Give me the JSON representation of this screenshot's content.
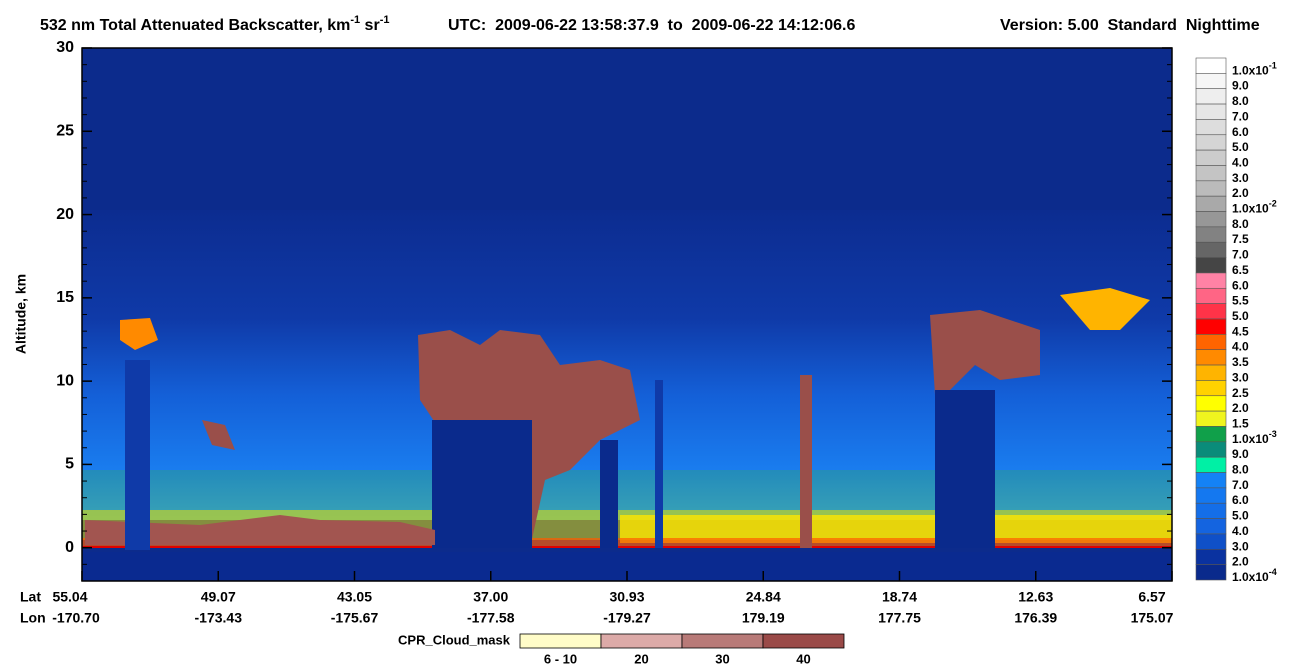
{
  "chart_data": {
    "type": "curtain",
    "title": {
      "main": "532 nm Total Attenuated Backscatter, km",
      "sup1": "-1",
      "unit2": " sr",
      "sup2": "-1",
      "utc": "UTC:  2009-06-22 13:58:37.9  to  2009-06-22 14:12:06.6",
      "version": "Version: 5.00  Standard  Nighttime"
    },
    "y_label": "Altitude, km",
    "ylim": [
      -2,
      30
    ],
    "yticks": [
      0,
      5,
      10,
      15,
      20,
      25,
      30
    ],
    "yminor_step": 1,
    "x_axis": {
      "lat_title": "Lat",
      "lon_title": "Lon",
      "lat": [
        "55.04",
        "49.07",
        "43.05",
        "37.00",
        "30.93",
        "24.84",
        "18.74",
        "12.63",
        "6.57"
      ],
      "lon": [
        "-170.70",
        "-173.43",
        "-175.67",
        "-177.58",
        "-179.27",
        "179.19",
        "177.75",
        "176.39",
        "175.07"
      ]
    },
    "colorbar": [
      {
        "label": "1.0x10",
        "exp": "-1",
        "color": "#ffffff"
      },
      {
        "label": "9.0",
        "color": "#f6f6f6"
      },
      {
        "label": "8.0",
        "color": "#eeeeee"
      },
      {
        "label": "7.0",
        "color": "#e6e6e6"
      },
      {
        "label": "6.0",
        "color": "#dddddd"
      },
      {
        "label": "5.0",
        "color": "#d5d5d5"
      },
      {
        "label": "4.0",
        "color": "#cccccc"
      },
      {
        "label": "3.0",
        "color": "#c4c4c4"
      },
      {
        "label": "2.0",
        "color": "#bbbbbb"
      },
      {
        "label": "1.0x10",
        "exp": "-2",
        "color": "#a9a9a9"
      },
      {
        "label": "8.0",
        "color": "#979797"
      },
      {
        "label": "7.5",
        "color": "#828282"
      },
      {
        "label": "7.0",
        "color": "#666666"
      },
      {
        "label": "6.5",
        "color": "#454545"
      },
      {
        "label": "6.0",
        "color": "#ff82a5"
      },
      {
        "label": "5.5",
        "color": "#ff6585"
      },
      {
        "label": "5.0",
        "color": "#ff3348"
      },
      {
        "label": "4.5",
        "color": "#ff0000"
      },
      {
        "label": "4.0",
        "color": "#ff6400"
      },
      {
        "label": "3.5",
        "color": "#ff8a00"
      },
      {
        "label": "3.0",
        "color": "#ffb400"
      },
      {
        "label": "2.5",
        "color": "#ffd200"
      },
      {
        "label": "2.0",
        "color": "#ffff00"
      },
      {
        "label": "1.5",
        "color": "#f0f51e"
      },
      {
        "label": "1.0x10",
        "exp": "-3",
        "color": "#10a04a"
      },
      {
        "label": "9.0",
        "color": "#0a8c7a"
      },
      {
        "label": "8.0",
        "color": "#00f0a5"
      },
      {
        "label": "7.0",
        "color": "#1482f5"
      },
      {
        "label": "6.0",
        "color": "#1478f0"
      },
      {
        "label": "5.0",
        "color": "#146ee8"
      },
      {
        "label": "4.0",
        "color": "#1464e0"
      },
      {
        "label": "3.0",
        "color": "#0f50c8"
      },
      {
        "label": "2.0",
        "color": "#0a32a0"
      },
      {
        "label": "1.0x10",
        "exp": "-4",
        "color": "#0a2a8c"
      }
    ],
    "cpr_legend": {
      "title": "CPR_Cloud_mask",
      "items": [
        {
          "label": "6 - 10",
          "color": "#fffcc8"
        },
        {
          "label": "20",
          "color": "#dcaaa8"
        },
        {
          "label": "30",
          "color": "#b87a78"
        },
        {
          "label": "40",
          "color": "#9a4a48"
        }
      ]
    }
  }
}
